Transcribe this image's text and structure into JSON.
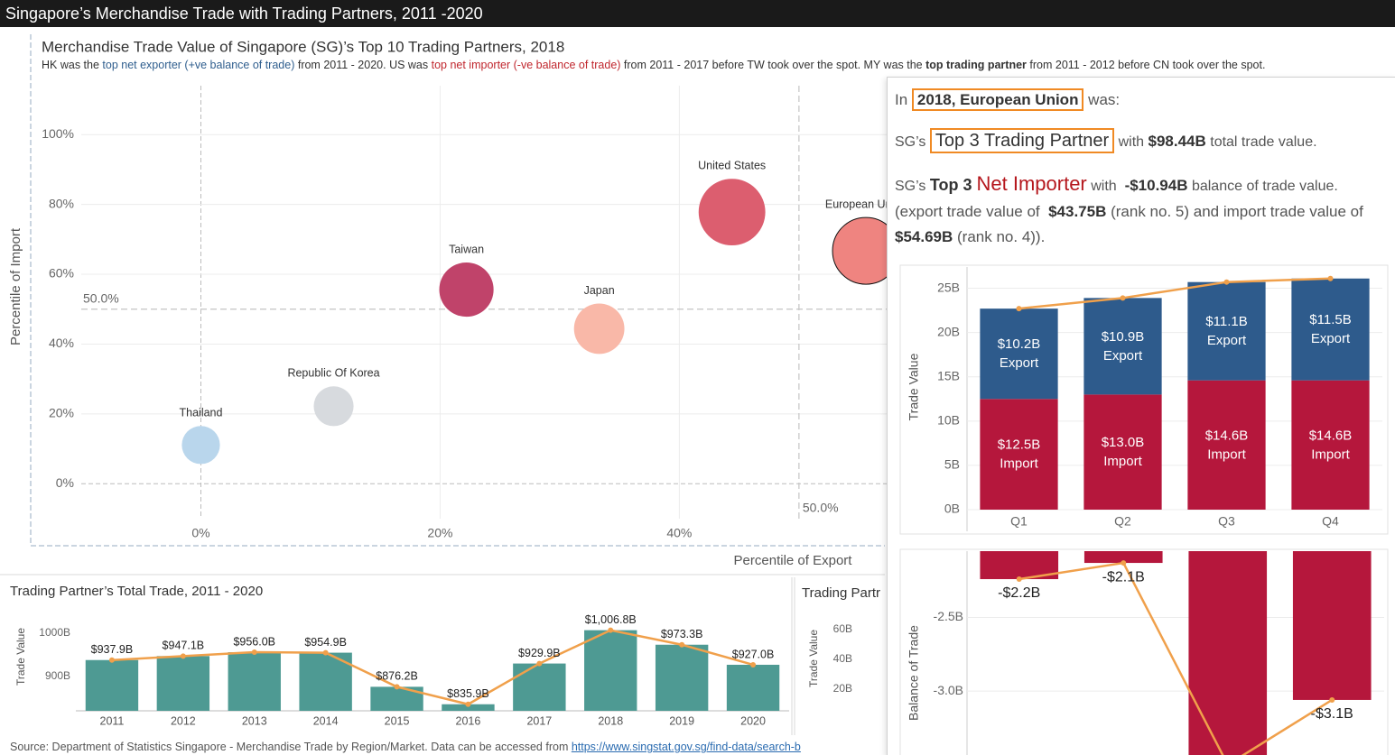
{
  "header": {
    "title": "Singapore’s Merchandise Trade with Trading Partners, 2011 -2020"
  },
  "chart_data": [
    {
      "type": "scatter",
      "title": "Merchandise Trade Value of Singapore (SG)’s Top 10 Trading Partners, 2018",
      "subtitle": [
        "HK was the ",
        "top net exporter (+ve balance of trade)",
        " from 2011 - 2020. US was ",
        "top net importer (-ve balance of trade)",
        " from 2011 - 2017 before TW took over the spot. MY was the ",
        "top trading partner",
        " from 2011 - 2012 before CN took over the spot."
      ],
      "x_label": "Percentile of Export",
      "y_label": "Percentile of Import",
      "labels": [
        "Thailand",
        "Republic Of Korea",
        "Taiwan",
        "Japan",
        "United States",
        "European Union"
      ],
      "x": [
        0,
        11.1,
        22.2,
        33.3,
        44.4,
        55.6
      ],
      "values": [
        11.1,
        22.2,
        55.6,
        44.4,
        77.8,
        66.7
      ],
      "sizes": [
        32,
        35,
        65,
        56,
        98,
        98.44
      ],
      "colors": [
        "#b9d6ec",
        "#d7dade",
        "#c0436a",
        "#f9b8a8",
        "#dc5e6f",
        "#ef8480"
      ],
      "selected": 5,
      "xlim": [
        -10,
        99
      ],
      "ylim": [
        -10,
        114
      ],
      "xticks": [
        {
          "value": 0,
          "label": "0%"
        },
        {
          "value": 20,
          "label": "20%"
        },
        {
          "value": 40,
          "label": "40%"
        }
      ],
      "yticks": [
        {
          "value": 0,
          "label": "0%"
        },
        {
          "value": 20,
          "label": "20%"
        },
        {
          "value": 40,
          "label": "40%"
        },
        {
          "value": 60,
          "label": "60%"
        },
        {
          "value": 80,
          "label": "80%"
        },
        {
          "value": 100,
          "label": "100%"
        }
      ],
      "reference_lines": [
        {
          "axis": "y",
          "value": 50,
          "label": "50.0%"
        },
        {
          "axis": "x",
          "value": 50,
          "label": "50.0%"
        }
      ],
      "grid": true
    },
    {
      "type": "bar",
      "title": "Trading Partner’s Total Trade, 2011 - 2020",
      "y_label": "Trade Value",
      "categories": [
        "2011",
        "2012",
        "2013",
        "2014",
        "2015",
        "2016",
        "2017",
        "2018",
        "2019",
        "2020"
      ],
      "values": [
        937.9,
        947.1,
        956.0,
        954.9,
        876.2,
        835.9,
        929.9,
        1006.8,
        973.3,
        927.0
      ],
      "value_labels": [
        "$937.9B",
        "$947.1B",
        "$956.0B",
        "$954.9B",
        "$876.2B",
        "$835.9B",
        "$929.9B",
        "$1,006.8B",
        "$973.3B",
        "$927.0B"
      ],
      "color": "#4e9a93",
      "line_color": "#f0a04b",
      "ylim": [
        820.8,
        1056
      ],
      "yticks": [
        {
          "value": 900,
          "label": "900B"
        },
        {
          "value": 1000,
          "label": "1000B"
        }
      ],
      "grid": false
    },
    {
      "type": "bar",
      "title": "Trading Partr",
      "y_label": "Trade Value",
      "ylim": [
        0,
        75
      ],
      "yticks": [
        {
          "value": 20,
          "label": "20B"
        },
        {
          "value": 40,
          "label": "40B"
        },
        {
          "value": 60,
          "label": "60B"
        }
      ],
      "grid": false
    },
    {
      "type": "stacked_bar",
      "y_label": "Trade Value",
      "categories": [
        "Q1",
        "Q2",
        "Q3",
        "Q4"
      ],
      "series": [
        {
          "name": "Import",
          "color": "#b5173c",
          "values": [
            12.5,
            13.0,
            14.6,
            14.6
          ],
          "value_labels": [
            "$12.5B",
            "$13.0B",
            "$14.6B",
            "$14.6B"
          ]
        },
        {
          "name": "Export",
          "color": "#2e5b8c",
          "values": [
            10.2,
            10.9,
            11.1,
            11.5
          ],
          "value_labels": [
            "$10.2B",
            "$10.9B",
            "$11.1B",
            "$11.5B"
          ]
        }
      ],
      "line_color": "#f0a04b",
      "ylim": [
        0,
        27.4
      ],
      "yticks": [
        {
          "value": 0,
          "label": "0B"
        },
        {
          "value": 5,
          "label": "5B"
        },
        {
          "value": 10,
          "label": "10B"
        },
        {
          "value": 15,
          "label": "15B"
        },
        {
          "value": 20,
          "label": "20B"
        },
        {
          "value": 25,
          "label": "25B"
        }
      ],
      "grid": true
    },
    {
      "type": "bar",
      "y_label": "Balance of Trade",
      "values": [
        -2.24,
        -2.13,
        -3.5,
        -3.06
      ],
      "value_labels": [
        "-$2.2B",
        "-$2.1B",
        null,
        "-$3.1B"
      ],
      "color": "#b5173c",
      "line_color": "#f0a04b",
      "ylim": [
        -3.44,
        -2.05
      ],
      "yticks": [
        {
          "value": -2.5,
          "label": "-2.5B"
        },
        {
          "value": -3,
          "label": "-3.0B"
        }
      ],
      "grid": true
    }
  ],
  "tooltip": {
    "lines": [
      [
        "In ",
        "2018, European Union",
        " was:"
      ],
      [
        "SG’s ",
        "Top 3 Trading Partner",
        " with ",
        "$98.44B",
        " total trade value."
      ],
      [
        "SG’s ",
        "Top 3 ",
        "Net Importer",
        " with  ",
        "-$10.94B",
        " balance of trade value."
      ],
      [
        "(export trade value of  ",
        "$43.75B",
        " (rank no. 5) and import trade value of ",
        "$54.69B",
        " (rank no. 4))."
      ]
    ]
  },
  "source": {
    "text": "Source: Department of Statistics Singapore - Merchandise Trade by Region/Market. Data can be accessed from ",
    "link": "https://www.singstat.gov.sg/find-data/search-b"
  }
}
